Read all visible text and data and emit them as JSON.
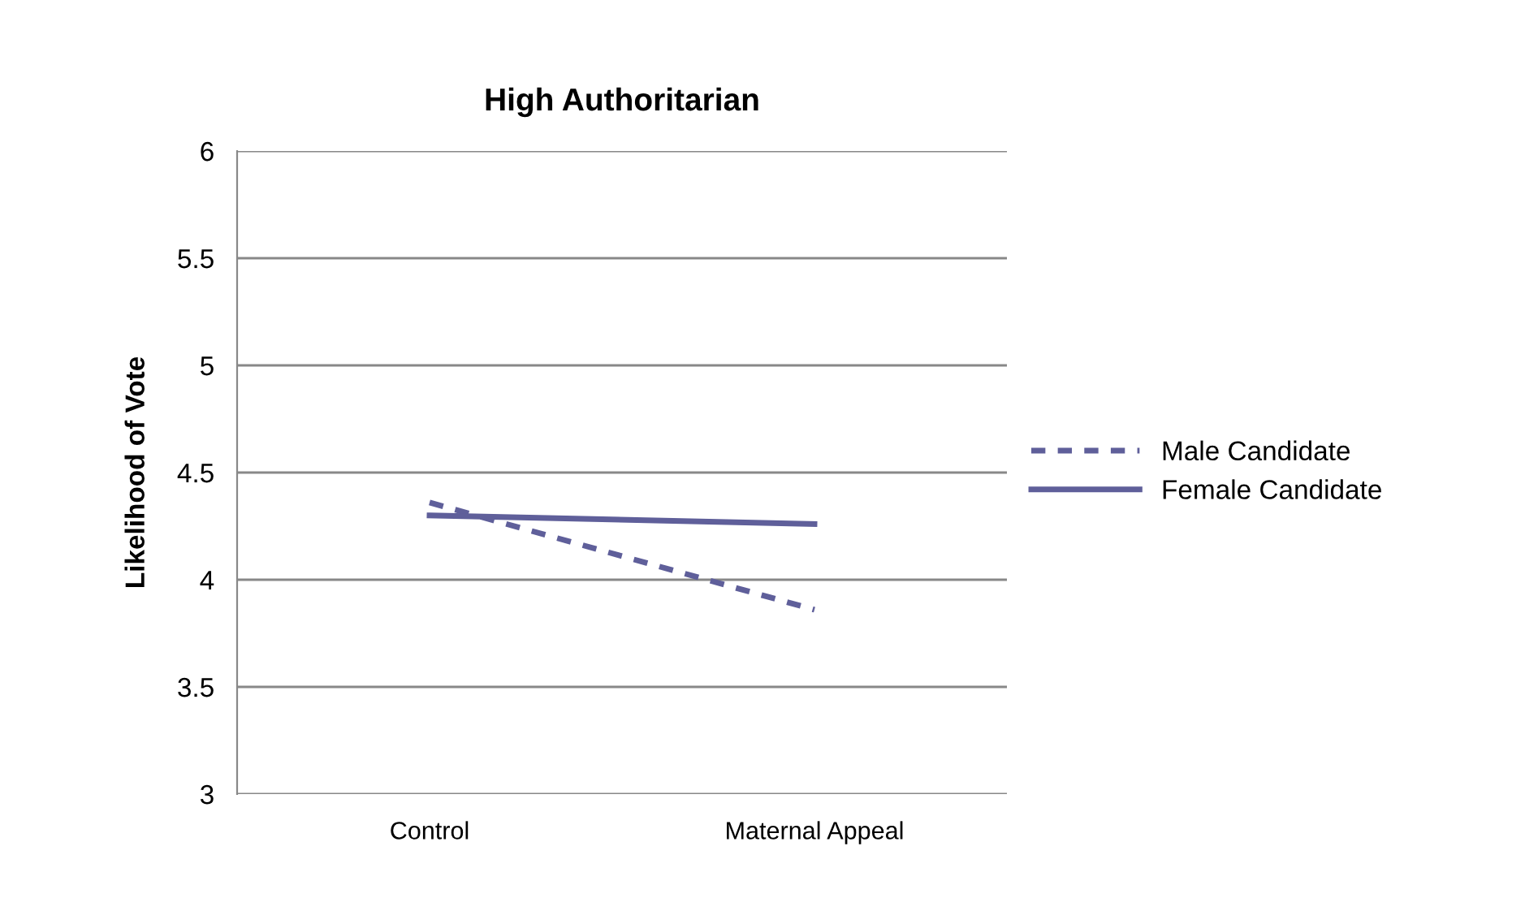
{
  "chart_data": {
    "type": "line",
    "title": "High Authoritarian",
    "ylabel": "Likelihood of Vote",
    "categories": [
      "Control",
      "Maternal Appeal"
    ],
    "series": [
      {
        "name": "Male Candidate",
        "color": "#5f5f9a",
        "values": [
          4.36,
          3.86
        ],
        "line_style": "dashed"
      },
      {
        "name": "Female Candidate",
        "color": "#5f5f9a",
        "values": [
          4.3,
          4.26
        ],
        "line_style": "solid"
      }
    ],
    "ylim": [
      3,
      6
    ],
    "yticks": [
      3,
      3.5,
      4,
      4.5,
      5,
      5.5,
      6
    ],
    "grid": "y",
    "legend": "right",
    "marker": "none"
  }
}
